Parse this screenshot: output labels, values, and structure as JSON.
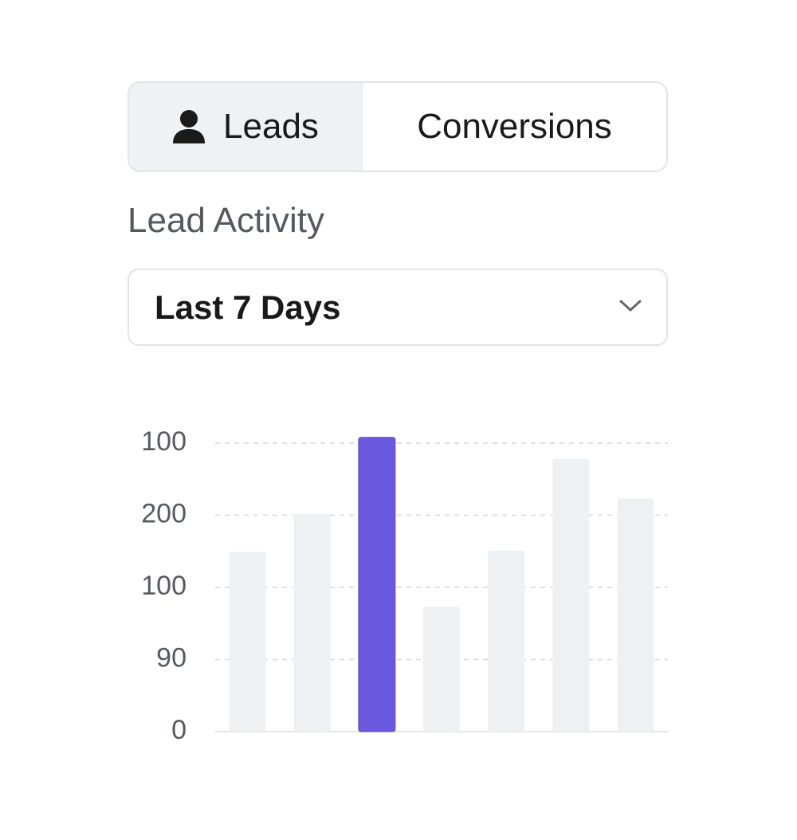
{
  "tabs": [
    {
      "label": "Leads",
      "active": true
    },
    {
      "label": "Conversions",
      "active": false
    }
  ],
  "section_label": "Lead Activity",
  "dropdown": {
    "selected": "Last 7 Days"
  },
  "chart_data": {
    "type": "bar",
    "values": [
      2.49,
      3.02,
      4.08,
      1.73,
      2.51,
      3.78,
      3.23
    ],
    "colors": [
      "#eef1f4",
      "#eef1f4",
      "#6b5ae0",
      "#eef1f4",
      "#eef1f4",
      "#eef1f4",
      "#eef1f4"
    ],
    "ylim": [
      0,
      4
    ],
    "yticks": [
      {
        "value": 0,
        "label": "0"
      },
      {
        "value": 1,
        "label": "90"
      },
      {
        "value": 2,
        "label": "100"
      },
      {
        "value": 3,
        "label": "200"
      },
      {
        "value": 4,
        "label": "100"
      }
    ],
    "grid": true
  }
}
